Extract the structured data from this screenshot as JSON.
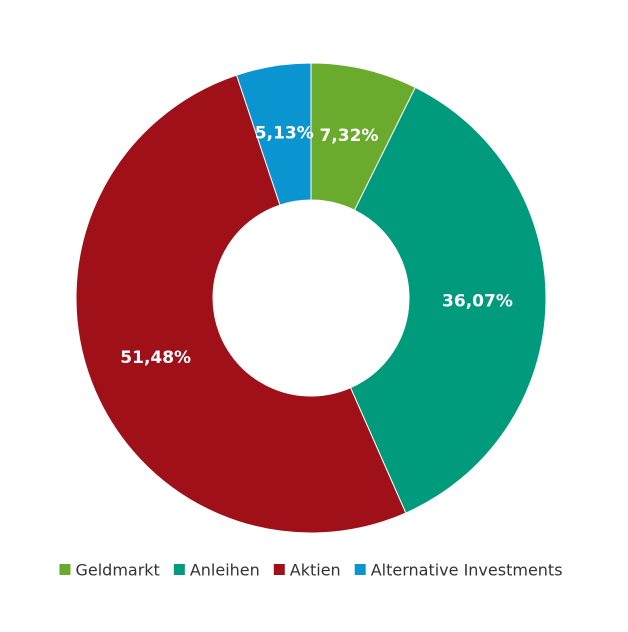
{
  "chart_data": {
    "type": "donut",
    "categories": [
      "Geldmarkt",
      "Anleihen",
      "Aktien",
      "Alternative Investments"
    ],
    "values": [
      7.32,
      36.07,
      51.48,
      5.13
    ],
    "value_labels": [
      "7,32%",
      "36,07%",
      "51,48%",
      "5,13%"
    ],
    "colors": [
      "#6aab2e",
      "#009a7c",
      "#a01018",
      "#0a95d0"
    ],
    "legend": "bottom"
  }
}
